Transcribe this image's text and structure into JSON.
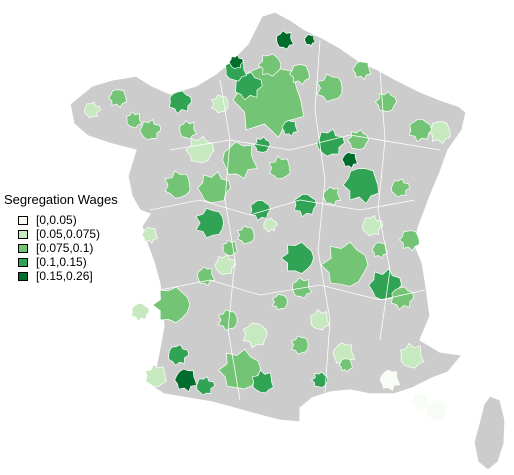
{
  "legend": {
    "title": "Segregation Wages",
    "items": [
      {
        "label": "[0,0.05)",
        "color": "#f7fcf5"
      },
      {
        "label": "[0.05,0.075)",
        "color": "#c7e9c0"
      },
      {
        "label": "[0.075,0.1)",
        "color": "#74c476"
      },
      {
        "label": "[0.1,0.15)",
        "color": "#31a354"
      },
      {
        "label": "[0.15,0.26]",
        "color": "#006d2c"
      }
    ]
  },
  "colors": {
    "no_data": "#cccccc",
    "borders": "#ffffff",
    "background": "#ffffff"
  }
}
